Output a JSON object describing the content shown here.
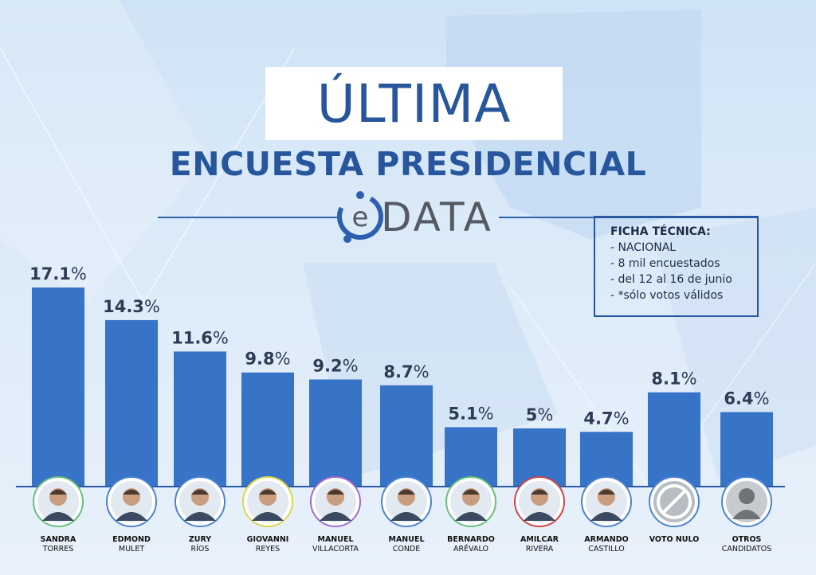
{
  "title": {
    "main": "ÚLTIMA",
    "subtitle": "ENCUESTA PRESIDENCIAL"
  },
  "logo": {
    "letter": "e",
    "text": "DATA",
    "icon_name": "edata-logo"
  },
  "ficha": {
    "title": "FICHA TÉCNICA:",
    "lines": [
      "- NACIONAL",
      "- 8 mil encuestados",
      "- del 12 al 16 de junio",
      "- *sólo votos válidos"
    ]
  },
  "colors": {
    "bar": "#3773c6",
    "title": "#27569c",
    "label": "#2d3b55",
    "ring_colors": [
      "#67c07a",
      "#4c83d1",
      "#4c83d1",
      "#d8d64a",
      "#a26ad0",
      "#4c83d1",
      "#67c07a",
      "#d04545",
      "#4c83d1",
      "#4c83d1",
      "#4c83d1"
    ]
  },
  "chart_data": {
    "type": "bar",
    "title": "ÚLTIMA ENCUESTA PRESIDENCIAL",
    "xlabel": "",
    "ylabel": "",
    "ylim": [
      0,
      20
    ],
    "grid": false,
    "categories": [
      {
        "first": "SANDRA",
        "last": "TORRES"
      },
      {
        "first": "EDMOND",
        "last": "MULET"
      },
      {
        "first": "ZURY",
        "last": "RÍOS"
      },
      {
        "first": "GIOVANNI",
        "last": "REYES"
      },
      {
        "first": "MANUEL",
        "last": "VILLACORTA"
      },
      {
        "first": "MANUEL",
        "last": "CONDE"
      },
      {
        "first": "BERNARDO",
        "last": "ARÉVALO"
      },
      {
        "first": "AMILCAR",
        "last": "RIVERA"
      },
      {
        "first": "ARMANDO",
        "last": "CASTILLO"
      },
      {
        "first": "VOTO NULO",
        "last": ""
      },
      {
        "first": "OTROS",
        "last": "CANDIDATOS"
      }
    ],
    "values": [
      17.1,
      14.3,
      11.6,
      9.8,
      9.2,
      8.7,
      5.1,
      5,
      4.7,
      8.1,
      6.4
    ],
    "value_labels": [
      {
        "num": "17.1",
        "pct": "%"
      },
      {
        "num": "14.3",
        "pct": "%"
      },
      {
        "num": "11.6",
        "pct": "%"
      },
      {
        "num": "9.8",
        "pct": "%"
      },
      {
        "num": "9.2",
        "pct": "%"
      },
      {
        "num": "8.7",
        "pct": "%"
      },
      {
        "num": "5.1",
        "pct": "%"
      },
      {
        "num": "5",
        "pct": "%"
      },
      {
        "num": "4.7",
        "pct": "%"
      },
      {
        "num": "8.1",
        "pct": "%"
      },
      {
        "num": "6.4",
        "pct": "%"
      }
    ],
    "avatar_icons": [
      "person-photo",
      "person-photo",
      "person-photo",
      "person-photo",
      "person-photo",
      "person-photo",
      "person-photo",
      "person-photo",
      "person-photo",
      "null-vote-icon",
      "generic-person-icon"
    ]
  }
}
